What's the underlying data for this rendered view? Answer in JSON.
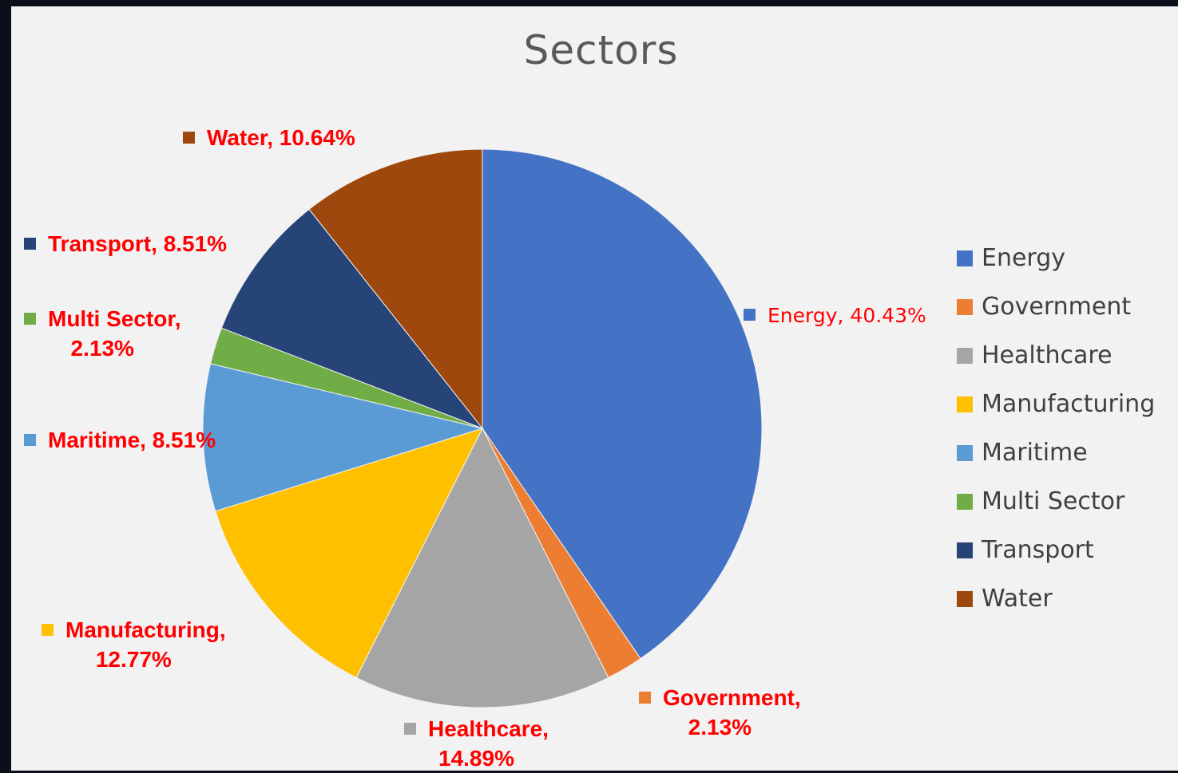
{
  "chart_data": {
    "type": "pie",
    "title": "Sectors",
    "categories": [
      "Energy",
      "Government",
      "Healthcare",
      "Manufacturing",
      "Maritime",
      "Multi Sector",
      "Transport",
      "Water"
    ],
    "values": [
      40.43,
      2.13,
      14.89,
      12.77,
      8.51,
      2.13,
      8.51,
      10.64
    ],
    "unit": "%",
    "colors": [
      "#4472c4",
      "#ed7d31",
      "#a5a5a5",
      "#ffc000",
      "#5b9bd5",
      "#70ad47",
      "#264478",
      "#9e480e"
    ],
    "data_labels": [
      {
        "text": "Energy, 40.43%"
      },
      {
        "text": "Government,",
        "text2": "2.13%"
      },
      {
        "text": "Healthcare,",
        "text2": "14.89%"
      },
      {
        "text": "Manufacturing,",
        "text2": "12.77%"
      },
      {
        "text": "Maritime, 8.51%"
      },
      {
        "text": "Multi Sector,",
        "text2": "2.13%"
      },
      {
        "text": "Transport, 8.51%"
      },
      {
        "text": "Water, 10.64%"
      }
    ],
    "label_color": "#ff0000",
    "legend_position": "right"
  }
}
